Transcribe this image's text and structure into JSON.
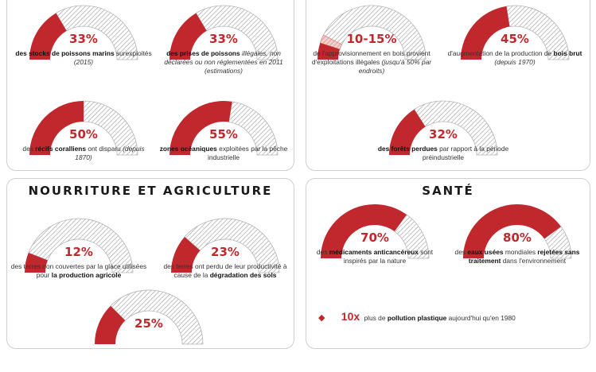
{
  "colors": {
    "accent": "#c0282d",
    "hatch": "#9a9a9a",
    "panel_border": "#cfcfcf"
  },
  "sections": {
    "food": {
      "title": "NOURRITURE ET AGRICULTURE"
    },
    "health": {
      "title": "SANTÉ"
    }
  },
  "chart_data": {
    "type": "gauge",
    "title": "",
    "unit": "%",
    "gauges": [
      {
        "section": "oceans",
        "value": 33,
        "label": "33%",
        "caption": {
          "bold": "des stocks de poissons marins",
          "normal": " surexploités",
          "italic": " (2015)"
        }
      },
      {
        "section": "oceans",
        "value": 33,
        "label": "33%",
        "caption": {
          "bold": "des prises de poissons",
          "normal": "",
          "italic": " illégales, non déclarées ou non réglementées en 2011 (estimations)"
        }
      },
      {
        "section": "oceans",
        "value": 50,
        "label": "50%",
        "caption": {
          "pre": "des ",
          "bold": "récifs coralliens",
          "normal": " ont disparu",
          "italic": " (depuis 1870)"
        }
      },
      {
        "section": "oceans",
        "value": 55,
        "label": "55%",
        "caption": {
          "bold": "zones océaniques",
          "normal": " exploitées par la pêche industrielle",
          "italic": ""
        }
      },
      {
        "section": "forests",
        "value": 10,
        "value_max": 15,
        "label": "10-15%",
        "caption": {
          "pre": "de l'approvisionnement en bois provient d'exploitations illégales",
          "bold": "",
          "normal": "",
          "italic": " (jusqu'à 50% par endroits)"
        }
      },
      {
        "section": "forests",
        "value": 45,
        "label": "45%",
        "caption": {
          "pre": "d'augmentation de la production de ",
          "bold": "bois brut",
          "normal": "",
          "italic": " (depuis 1970)"
        }
      },
      {
        "section": "forests",
        "value": 32,
        "label": "32%",
        "caption": {
          "bold": "des forêts perdues",
          "normal": " par rapport à la période préindustrielle",
          "italic": ""
        }
      },
      {
        "section": "food",
        "value": 12,
        "label": "12%",
        "caption": {
          "pre": "des terres non couvertes par la glace utilisées pour ",
          "bold": "la production agricole",
          "normal": "",
          "italic": ""
        }
      },
      {
        "section": "food",
        "value": 23,
        "label": "23%",
        "caption": {
          "pre": "des terres ont perdu de leur productivité à cause de la ",
          "bold": "dégradation des sols",
          "normal": "",
          "italic": ""
        }
      },
      {
        "section": "food",
        "value": 25,
        "label": "25%",
        "caption": {
          "pre": "",
          "bold": "",
          "normal": "",
          "italic": ""
        }
      },
      {
        "section": "health",
        "value": 70,
        "label": "70%",
        "caption": {
          "pre": "des ",
          "bold": "médicaments anticancéreux",
          "normal": " sont inspirés par la nature",
          "italic": ""
        }
      },
      {
        "section": "health",
        "value": 80,
        "label": "80%",
        "caption": {
          "pre": "des ",
          "bold": "eaux usées",
          "normal": " mondiales ",
          "bold2": "rejetées sans traitement",
          "normal2": " dans l'environnement",
          "italic": ""
        }
      }
    ],
    "extra_stat": {
      "multiplier": "10x",
      "pre": "plus de ",
      "bold": "pollution plastique",
      "post": " aujourd'hui qu'en 1980"
    }
  }
}
